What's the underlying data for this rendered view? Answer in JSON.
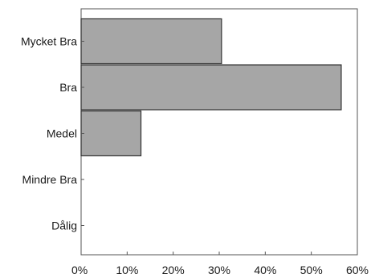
{
  "chart_data": {
    "type": "bar",
    "orientation": "horizontal",
    "categories": [
      "Mycket Bra",
      "Bra",
      "Medel",
      "Mindre Bra",
      "Dålig"
    ],
    "values": [
      30.5,
      56.5,
      13,
      0,
      0
    ],
    "xlim": [
      0,
      60
    ],
    "x_ticks": [
      0,
      10,
      20,
      30,
      40,
      50,
      60
    ],
    "x_tick_labels": [
      "0%",
      "10%",
      "20%",
      "30%",
      "40%",
      "50%",
      "60%"
    ],
    "grid": false,
    "bar_color": "#a6a6a6",
    "edge_color": "#333333"
  }
}
